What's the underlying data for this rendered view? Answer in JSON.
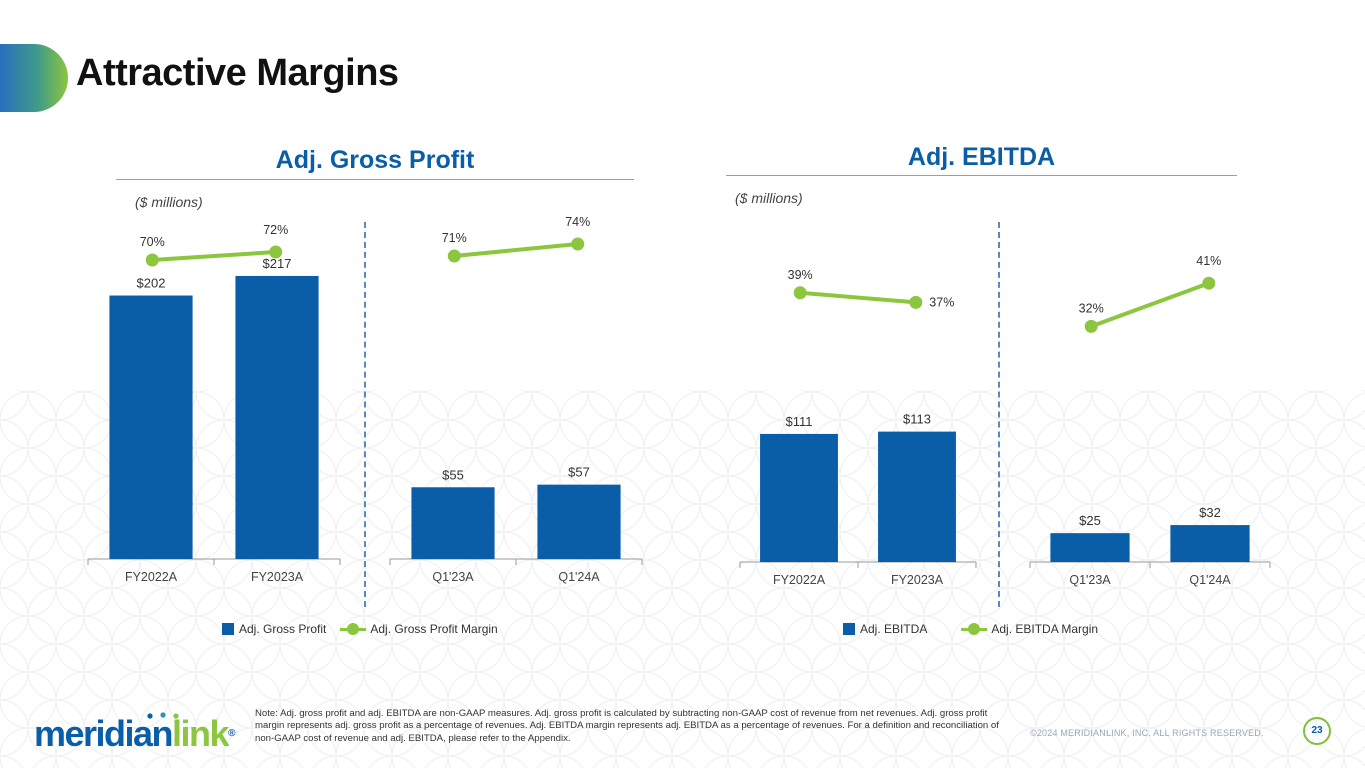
{
  "page": {
    "title": "Attractive Margins",
    "note": "Note: Adj. gross profit and adj. EBITDA are non-GAAP measures. Adj. gross profit is calculated by subtracting non-GAAP cost of revenue from net revenues. Adj. gross profit margin represents adj. gross profit as a percentage of revenues. Adj. EBITDA margin represents adj. EBITDA as a percentage of revenues. For a definition and reconciliation of non-GAAP cost of revenue and adj. EBITDA, please refer to the Appendix.",
    "copyright": "©2024 MERIDIANLINK, INC. ALL RIGHTS RESERVED.",
    "page_number": "23",
    "logo": {
      "part1": "meridian",
      "part2": "link",
      "mark": "®"
    }
  },
  "colors": {
    "bar": "#0a5ea8",
    "line": "#8cc63f",
    "title_blue": "#0a5ea8"
  },
  "chart_data": [
    {
      "type": "bar",
      "title": "Adj. Gross Profit",
      "units": "($ millions)",
      "legend": {
        "bar": "Adj. Gross Profit",
        "line": "Adj. Gross Profit Margin"
      },
      "groups": [
        {
          "categories": [
            "FY2022A",
            "FY2023A"
          ],
          "values": [
            202,
            217
          ],
          "value_labels": [
            "$202",
            "$217"
          ],
          "margin": [
            70,
            72
          ],
          "margin_labels": [
            "70%",
            "72%"
          ]
        },
        {
          "categories": [
            "Q1'23A",
            "Q1'24A"
          ],
          "values": [
            55,
            57
          ],
          "value_labels": [
            "$55",
            "$57"
          ],
          "margin": [
            71,
            74
          ],
          "margin_labels": [
            "71%",
            "74%"
          ]
        }
      ]
    },
    {
      "type": "bar",
      "title": "Adj. EBITDA",
      "units": "($ millions)",
      "legend": {
        "bar": "Adj. EBITDA",
        "line": "Adj. EBITDA Margin"
      },
      "groups": [
        {
          "categories": [
            "FY2022A",
            "FY2023A"
          ],
          "values": [
            111,
            113
          ],
          "value_labels": [
            "$111",
            "$113"
          ],
          "margin": [
            39,
            37
          ],
          "margin_labels": [
            "39%",
            "37%"
          ]
        },
        {
          "categories": [
            "Q1'23A",
            "Q1'24A"
          ],
          "values": [
            25,
            32
          ],
          "value_labels": [
            "$25",
            "$32"
          ],
          "margin": [
            32,
            41
          ],
          "margin_labels": [
            "32%",
            "41%"
          ]
        }
      ]
    }
  ]
}
